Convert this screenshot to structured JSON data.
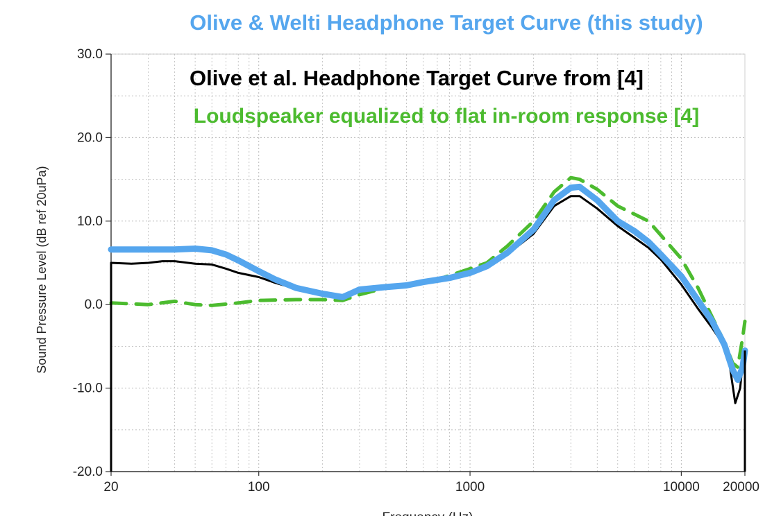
{
  "chart_data": {
    "type": "line",
    "title": "Olive & Welti Headphone Target Curve (this study)",
    "xlabel": "Frequency (Hz)",
    "ylabel": "Sound Pressure Level (dB ref 20uPa)",
    "xscale": "log",
    "xlim": [
      20,
      20000
    ],
    "ylim": [
      -20,
      30
    ],
    "x_ticks": [
      20,
      100,
      1000,
      10000,
      20000
    ],
    "x_tick_labels": [
      "20",
      "100",
      "1000",
      "10000",
      "20000"
    ],
    "y_ticks": [
      30,
      20,
      10,
      0,
      -10,
      -20
    ],
    "y_tick_labels": [
      "30.0",
      "20.0",
      "10.0",
      "0.0",
      "-10.0",
      "-20.0"
    ],
    "grid": true,
    "series": [
      {
        "name": "Olive et al. Headphone Target Curve from [4]",
        "color": "#000000",
        "style": "solid",
        "points": [
          [
            20,
            5.0
          ],
          [
            25,
            4.9
          ],
          [
            30,
            5.0
          ],
          [
            35,
            5.2
          ],
          [
            40,
            5.2
          ],
          [
            50,
            4.9
          ],
          [
            60,
            4.8
          ],
          [
            70,
            4.3
          ],
          [
            80,
            3.8
          ],
          [
            100,
            3.3
          ],
          [
            120,
            2.6
          ],
          [
            150,
            1.9
          ],
          [
            200,
            1.3
          ],
          [
            250,
            1.0
          ],
          [
            300,
            1.7
          ],
          [
            400,
            2.1
          ],
          [
            500,
            2.3
          ],
          [
            600,
            2.7
          ],
          [
            800,
            3.0
          ],
          [
            1000,
            3.8
          ],
          [
            1200,
            4.6
          ],
          [
            1500,
            6.0
          ],
          [
            2000,
            8.5
          ],
          [
            2500,
            11.8
          ],
          [
            3000,
            13.0
          ],
          [
            3300,
            13.0
          ],
          [
            4000,
            11.5
          ],
          [
            5000,
            9.4
          ],
          [
            6000,
            8.0
          ],
          [
            7000,
            6.8
          ],
          [
            8000,
            5.4
          ],
          [
            10000,
            2.4
          ],
          [
            12000,
            -0.5
          ],
          [
            14000,
            -2.8
          ],
          [
            16000,
            -5.0
          ],
          [
            17000,
            -7.5
          ],
          [
            18000,
            -11.8
          ],
          [
            19000,
            -10.0
          ],
          [
            19500,
            -7.0
          ],
          [
            20000,
            -5.5
          ]
        ]
      },
      {
        "name": "Loudspeaker equalized to flat in-room response [4]",
        "color": "#4cbb2f",
        "style": "dashed",
        "points": [
          [
            20,
            0.2
          ],
          [
            30,
            0.0
          ],
          [
            40,
            0.4
          ],
          [
            50,
            0.0
          ],
          [
            60,
            -0.1
          ],
          [
            80,
            0.2
          ],
          [
            100,
            0.5
          ],
          [
            150,
            0.6
          ],
          [
            200,
            0.6
          ],
          [
            250,
            0.5
          ],
          [
            300,
            1.2
          ],
          [
            400,
            2.0
          ],
          [
            500,
            2.4
          ],
          [
            700,
            3.0
          ],
          [
            1000,
            4.3
          ],
          [
            1200,
            5.0
          ],
          [
            1500,
            7.0
          ],
          [
            2000,
            10.0
          ],
          [
            2500,
            13.5
          ],
          [
            3000,
            15.2
          ],
          [
            3300,
            15.0
          ],
          [
            4000,
            13.8
          ],
          [
            5000,
            11.8
          ],
          [
            7000,
            10.0
          ],
          [
            10000,
            5.5
          ],
          [
            12000,
            2.0
          ],
          [
            14000,
            -1.5
          ],
          [
            16000,
            -4.5
          ],
          [
            17500,
            -7.0
          ],
          [
            18500,
            -7.5
          ],
          [
            19500,
            -4.0
          ],
          [
            20000,
            -2.0
          ]
        ]
      },
      {
        "name": "Olive & Welti Headphone Target Curve (this study)",
        "color": "#55a6ee",
        "style": "solid",
        "points": [
          [
            20,
            6.6
          ],
          [
            30,
            6.6
          ],
          [
            40,
            6.6
          ],
          [
            50,
            6.7
          ],
          [
            60,
            6.5
          ],
          [
            70,
            6.0
          ],
          [
            80,
            5.3
          ],
          [
            100,
            4.0
          ],
          [
            120,
            3.0
          ],
          [
            150,
            2.0
          ],
          [
            200,
            1.3
          ],
          [
            250,
            0.9
          ],
          [
            300,
            1.8
          ],
          [
            400,
            2.1
          ],
          [
            500,
            2.3
          ],
          [
            600,
            2.7
          ],
          [
            800,
            3.2
          ],
          [
            1000,
            3.8
          ],
          [
            1200,
            4.6
          ],
          [
            1500,
            6.2
          ],
          [
            2000,
            9.0
          ],
          [
            2500,
            12.5
          ],
          [
            3000,
            14.0
          ],
          [
            3300,
            14.1
          ],
          [
            4000,
            12.5
          ],
          [
            5000,
            10.0
          ],
          [
            6000,
            8.8
          ],
          [
            7000,
            7.5
          ],
          [
            8000,
            6.0
          ],
          [
            10000,
            3.4
          ],
          [
            12000,
            0.5
          ],
          [
            14000,
            -2.0
          ],
          [
            16000,
            -4.8
          ],
          [
            17500,
            -7.8
          ],
          [
            18500,
            -9.0
          ],
          [
            19500,
            -7.5
          ],
          [
            20000,
            -5.5
          ]
        ]
      }
    ]
  }
}
